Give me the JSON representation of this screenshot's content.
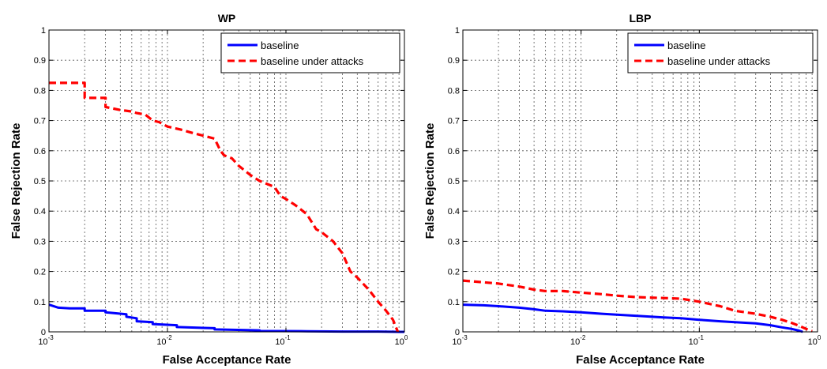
{
  "chart_data": [
    {
      "type": "line",
      "title": "WP",
      "xlabel": "False Acceptance Rate",
      "ylabel": "False Rejection Rate",
      "xscale": "log",
      "xlim": [
        0.001,
        1
      ],
      "ylim": [
        0,
        1
      ],
      "grid": true,
      "legend_position": "top-right",
      "x_ticks": [
        {
          "base": "10",
          "exp": "-3"
        },
        {
          "base": "10",
          "exp": "-2"
        },
        {
          "base": "10",
          "exp": "-1"
        },
        {
          "base": "10",
          "exp": "0"
        }
      ],
      "y_ticks": [
        "0",
        "0.1",
        "0.2",
        "0.3",
        "0.4",
        "0.5",
        "0.6",
        "0.7",
        "0.8",
        "0.9",
        "1"
      ],
      "series": [
        {
          "name": "baseline",
          "color": "#0000ff",
          "style": "solid",
          "x": [
            0.001,
            0.0012,
            0.0015,
            0.002,
            0.002,
            0.003,
            0.003,
            0.0045,
            0.0045,
            0.0055,
            0.0055,
            0.0075,
            0.0075,
            0.012,
            0.012,
            0.025,
            0.025,
            0.06,
            0.06,
            0.15,
            0.3,
            0.6,
            0.9,
            1.0
          ],
          "y": [
            0.09,
            0.08,
            0.078,
            0.078,
            0.07,
            0.07,
            0.065,
            0.058,
            0.05,
            0.045,
            0.035,
            0.032,
            0.026,
            0.022,
            0.016,
            0.012,
            0.008,
            0.005,
            0.003,
            0.002,
            0.001,
            0.001,
            0.0,
            0.0
          ]
        },
        {
          "name": "baseline under attacks",
          "color": "#ff0000",
          "style": "dashed",
          "x": [
            0.001,
            0.002,
            0.002,
            0.003,
            0.003,
            0.004,
            0.005,
            0.0055,
            0.0065,
            0.0075,
            0.0085,
            0.01,
            0.013,
            0.016,
            0.02,
            0.025,
            0.028,
            0.03,
            0.035,
            0.04,
            0.05,
            0.06,
            0.08,
            0.09,
            0.1,
            0.12,
            0.15,
            0.18,
            0.2,
            0.25,
            0.3,
            0.35,
            0.4,
            0.5,
            0.6,
            0.7,
            0.8,
            0.88
          ],
          "y": [
            0.825,
            0.825,
            0.775,
            0.775,
            0.745,
            0.735,
            0.73,
            0.725,
            0.72,
            0.7,
            0.695,
            0.68,
            0.67,
            0.66,
            0.65,
            0.64,
            0.6,
            0.585,
            0.575,
            0.55,
            0.52,
            0.5,
            0.48,
            0.45,
            0.44,
            0.42,
            0.39,
            0.34,
            0.33,
            0.3,
            0.26,
            0.2,
            0.18,
            0.14,
            0.1,
            0.07,
            0.04,
            0.0
          ]
        }
      ]
    },
    {
      "type": "line",
      "title": "LBP",
      "xlabel": "False Acceptance Rate",
      "ylabel": "False Rejection Rate",
      "xscale": "log",
      "xlim": [
        0.001,
        1
      ],
      "ylim": [
        0,
        1
      ],
      "grid": true,
      "legend_position": "top-right",
      "x_ticks": [
        {
          "base": "10",
          "exp": "-3"
        },
        {
          "base": "10",
          "exp": "-2"
        },
        {
          "base": "10",
          "exp": "-1"
        },
        {
          "base": "10",
          "exp": "0"
        }
      ],
      "y_ticks": [
        "0",
        "0.1",
        "0.2",
        "0.3",
        "0.4",
        "0.5",
        "0.6",
        "0.7",
        "0.8",
        "0.9",
        "1"
      ],
      "series": [
        {
          "name": "baseline",
          "color": "#0000ff",
          "style": "solid",
          "x": [
            0.001,
            0.0015,
            0.002,
            0.003,
            0.004,
            0.005,
            0.007,
            0.01,
            0.015,
            0.02,
            0.03,
            0.04,
            0.05,
            0.07,
            0.1,
            0.15,
            0.2,
            0.3,
            0.4,
            0.5,
            0.6,
            0.7,
            0.75
          ],
          "y": [
            0.09,
            0.088,
            0.085,
            0.08,
            0.075,
            0.07,
            0.068,
            0.065,
            0.06,
            0.057,
            0.053,
            0.05,
            0.048,
            0.045,
            0.04,
            0.035,
            0.032,
            0.028,
            0.022,
            0.015,
            0.01,
            0.004,
            0.0
          ]
        },
        {
          "name": "baseline under attacks",
          "color": "#ff0000",
          "style": "dashed",
          "x": [
            0.001,
            0.002,
            0.003,
            0.004,
            0.005,
            0.007,
            0.01,
            0.015,
            0.02,
            0.03,
            0.05,
            0.07,
            0.1,
            0.15,
            0.2,
            0.3,
            0.4,
            0.5,
            0.6,
            0.7,
            0.8,
            0.9
          ],
          "y": [
            0.17,
            0.16,
            0.15,
            0.14,
            0.135,
            0.135,
            0.13,
            0.125,
            0.12,
            0.115,
            0.112,
            0.11,
            0.1,
            0.085,
            0.07,
            0.06,
            0.05,
            0.04,
            0.03,
            0.02,
            0.01,
            0.002
          ]
        }
      ]
    }
  ]
}
